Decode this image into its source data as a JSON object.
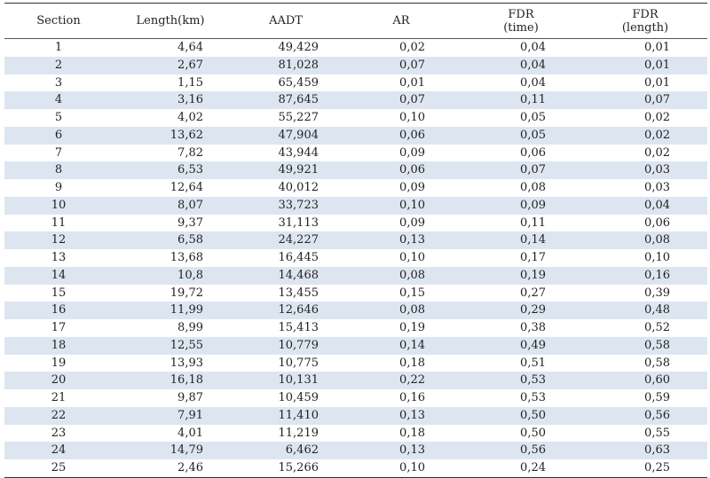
{
  "header": {
    "section": "Section",
    "length": "Length(km)",
    "aadt": "AADT",
    "ar": "AR",
    "fdr_time_1": "FDR",
    "fdr_time_2": "(time)",
    "fdr_length_1": "FDR",
    "fdr_length_2": "(length)"
  },
  "rows": [
    [
      "1",
      "4,64",
      "49,429",
      "0,02",
      "0,04",
      "0,01"
    ],
    [
      "2",
      "2,67",
      "81,028",
      "0,07",
      "0,04",
      "0,01"
    ],
    [
      "3",
      "1,15",
      "65,459",
      "0,01",
      "0,04",
      "0,01"
    ],
    [
      "4",
      "3,16",
      "87,645",
      "0,07",
      "0,11",
      "0,07"
    ],
    [
      "5",
      "4,02",
      "55,227",
      "0,10",
      "0,05",
      "0,02"
    ],
    [
      "6",
      "13,62",
      "47,904",
      "0,06",
      "0,05",
      "0,02"
    ],
    [
      "7",
      "7,82",
      "43,944",
      "0,09",
      "0,06",
      "0,02"
    ],
    [
      "8",
      "6,53",
      "49,921",
      "0,06",
      "0,07",
      "0,03"
    ],
    [
      "9",
      "12,64",
      "40,012",
      "0,09",
      "0,08",
      "0,03"
    ],
    [
      "10",
      "8,07",
      "33,723",
      "0,10",
      "0,09",
      "0,04"
    ],
    [
      "11",
      "9,37",
      "31,113",
      "0,09",
      "0,11",
      "0,06"
    ],
    [
      "12",
      "6,58",
      "24,227",
      "0,13",
      "0,14",
      "0,08"
    ],
    [
      "13",
      "13,68",
      "16,445",
      "0,10",
      "0,17",
      "0,10"
    ],
    [
      "14",
      "10,8",
      "14,468",
      "0,08",
      "0,19",
      "0,16"
    ],
    [
      "15",
      "19,72",
      "13,455",
      "0,15",
      "0,27",
      "0,39"
    ],
    [
      "16",
      "11,99",
      "12,646",
      "0,08",
      "0,29",
      "0,48"
    ],
    [
      "17",
      "8,99",
      "15,413",
      "0,19",
      "0,38",
      "0,52"
    ],
    [
      "18",
      "12,55",
      "10,779",
      "0,14",
      "0,49",
      "0,58"
    ],
    [
      "19",
      "13,93",
      "10,775",
      "0,18",
      "0,51",
      "0,58"
    ],
    [
      "20",
      "16,18",
      "10,131",
      "0,22",
      "0,53",
      "0,60"
    ],
    [
      "21",
      "9,87",
      "10,459",
      "0,16",
      "0,53",
      "0,59"
    ],
    [
      "22",
      "7,91",
      "11,410",
      "0,13",
      "0,50",
      "0,56"
    ],
    [
      "23",
      "4,01",
      "11,219",
      "0,18",
      "0,50",
      "0,55"
    ],
    [
      "24",
      "14,79",
      "6,462",
      "0,13",
      "0,56",
      "0,63"
    ],
    [
      "25",
      "2,46",
      "15,266",
      "0,10",
      "0,24",
      "0,25"
    ]
  ]
}
